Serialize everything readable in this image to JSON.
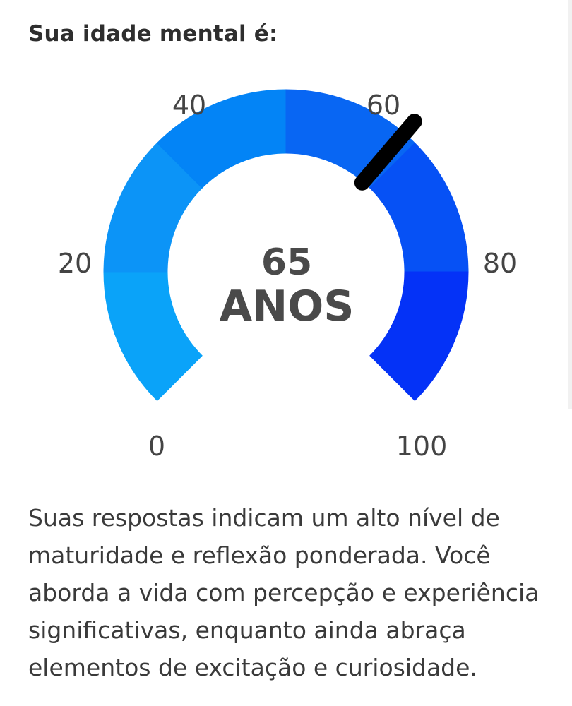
{
  "heading": "Sua idade mental é:",
  "gauge": {
    "min": 0,
    "max": 100,
    "value": 65,
    "value_label": "65",
    "unit_label": "ANOS",
    "tick_labels": [
      "0",
      "20",
      "40",
      "60",
      "80",
      "100"
    ],
    "band_colors": [
      "#0aa3f9",
      "#0c94f7",
      "#0384f6",
      "#0866f3",
      "#0651f5",
      "#0432f7"
    ],
    "needle_color": "#000000"
  },
  "description": "Suas respostas indicam um alto nível de maturidade e reflexão ponderada. Você aborda a vida com percepção e experiência significativas, enquanto ainda abraça elementos de excitação e curiosidade."
}
